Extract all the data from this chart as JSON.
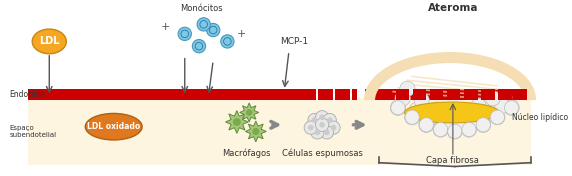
{
  "bg_color": "#ffffff",
  "subendothelial_color": "#fdf5e0",
  "endothelium_color": "#cc0000",
  "ldl_ball_color": "#f5a623",
  "ldl_ball_text": "LDL",
  "ldl_ox_color": "#e07820",
  "ldl_ox_text": "LDL oxidado",
  "monocyte_color": "#7ec8e3",
  "macrophage_color": "#a8c878",
  "foam_color": "#d0d0d0",
  "lipid_color": "#f5c518",
  "fibrous_color": "#f5deb3",
  "arrow_color": "#555555",
  "label_endotelio": "Endotélio",
  "label_espaco": "Espaço\nsubendotelial",
  "label_monocitos": "Monócitos",
  "label_macrofagos": "Macrófagos",
  "label_celulas": "Células espumosas",
  "label_capa": "Capa fibrosa",
  "label_nucleo": "Núcleo lipídico",
  "label_ateroma": "Ateroma",
  "label_mcp1": "MCP-1"
}
